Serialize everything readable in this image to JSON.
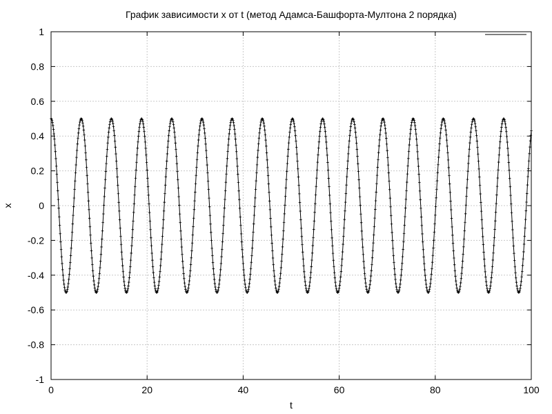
{
  "chart_data": {
    "type": "line",
    "title": "График зависимости x от t (метод Адамса-Башфорта-Мултона 2 порядка)",
    "xlabel": "t",
    "ylabel": "x",
    "xlim": [
      0,
      100
    ],
    "ylim": [
      -1,
      1
    ],
    "xticks": [
      "0",
      "20",
      "40",
      "60",
      "80",
      "100"
    ],
    "yticks": [
      "1",
      "0.8",
      "0.6",
      "0.4",
      "0.2",
      "0",
      "-0.2",
      "-0.4",
      "-0.6",
      "-0.8",
      "-1"
    ],
    "grid": true,
    "legend": "top-right",
    "series": [
      {
        "name": "",
        "color": "#000000",
        "marker": "plus",
        "function": "x = 0.5*cos(omega*t)",
        "amplitude": 0.5,
        "omega": 1.0,
        "t_start": 0,
        "t_end": 100,
        "dt": 0.1
      }
    ]
  }
}
